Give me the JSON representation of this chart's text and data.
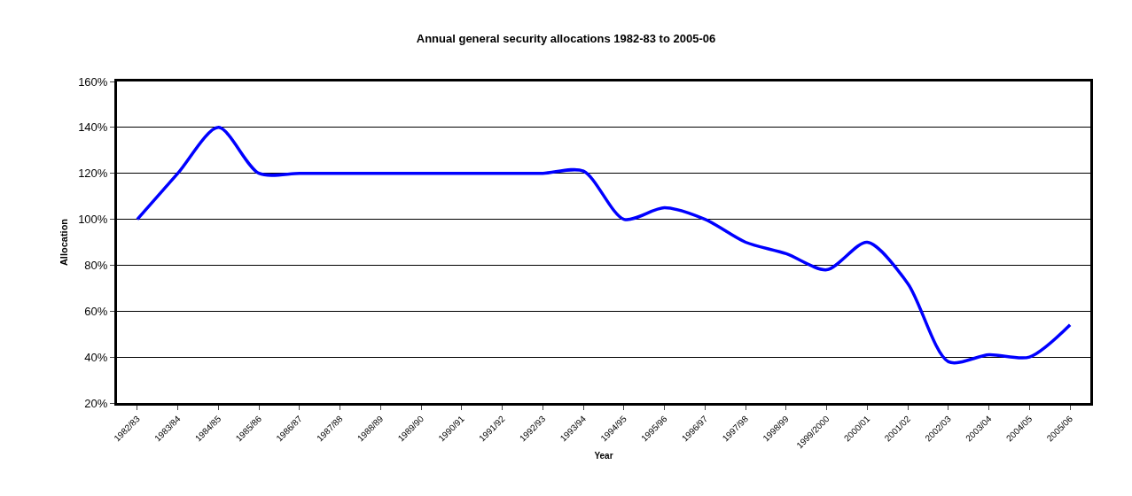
{
  "chart_data": {
    "type": "line",
    "title": "Annual general security allocations 1982-83 to 2005-06",
    "xlabel": "Year",
    "ylabel": "Allocation",
    "categories": [
      "1982/83",
      "1983/84",
      "1984/85",
      "1985/86",
      "1986/87",
      "1987/88",
      "1988/89",
      "1989/90",
      "1990/91",
      "1991/92",
      "1992/93",
      "1993/94",
      "1994/95",
      "1995/96",
      "1996/97",
      "1997/98",
      "1998/99",
      "1999/2000",
      "2000/01",
      "2001/02",
      "2002/03",
      "2003/04",
      "2004/05",
      "2005/06"
    ],
    "series": [
      {
        "color": "#0000ff",
        "values": [
          100,
          120,
          140,
          120,
          120,
          120,
          120,
          120,
          120,
          120,
          120,
          121,
          100,
          105,
          100,
          90,
          85,
          78,
          90,
          72,
          38,
          41,
          40,
          54
        ]
      }
    ],
    "ylim": [
      20,
      160
    ],
    "yticks": [
      {
        "value": 20,
        "label": "20%"
      },
      {
        "value": 40,
        "label": "40%"
      },
      {
        "value": 60,
        "label": "60%"
      },
      {
        "value": 80,
        "label": "80%"
      },
      {
        "value": 100,
        "label": "100%"
      },
      {
        "value": 120,
        "label": "120%"
      },
      {
        "value": 140,
        "label": "140%"
      },
      {
        "value": 160,
        "label": "160%"
      }
    ],
    "grid": "y",
    "legend": false,
    "marker": "none",
    "line_style": "solid"
  }
}
